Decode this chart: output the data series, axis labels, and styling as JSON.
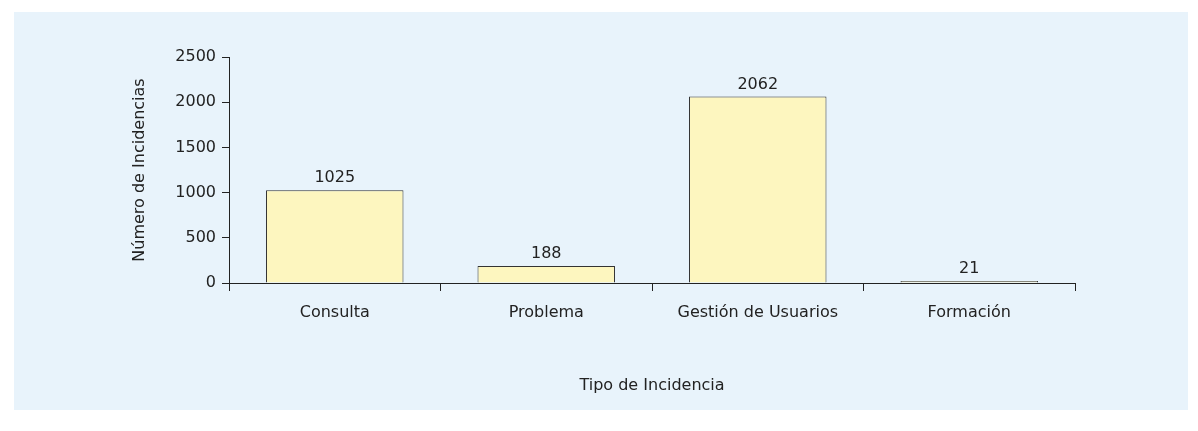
{
  "chart_data": {
    "type": "bar",
    "xlabel": "Tipo de Incidencia",
    "ylabel": "Número de Incidencias",
    "categories": [
      "Consulta",
      "Problema",
      "Gestión de Usuarios",
      "Formación"
    ],
    "values": [
      1025,
      188,
      2062,
      21
    ],
    "color": "#fdf6bf",
    "ylim": [
      0,
      2500
    ],
    "yticks": [
      0,
      500,
      1000,
      1500,
      2000,
      2500
    ],
    "grid": false,
    "legend": false,
    "data_labels": true
  }
}
